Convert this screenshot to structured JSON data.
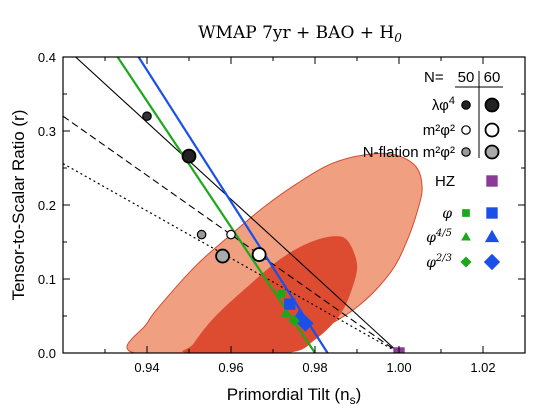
{
  "chart_data": {
    "type": "scatter",
    "title": "WMAP 7yr + BAO + H",
    "title_subscript": "0",
    "xlabel": "Primordial Tilt (n",
    "xlabel_subscript": "s",
    "xlabel_close": ")",
    "ylabel": "Tensor-to-Scalar Ratio (r)",
    "xlim": [
      0.92,
      1.03
    ],
    "ylim": [
      0.0,
      0.4
    ],
    "xticks": [
      0.94,
      0.96,
      0.98,
      1.0,
      1.02
    ],
    "xtick_labels": [
      "0.94",
      "0.96",
      "0.98",
      "1.00",
      "1.02"
    ],
    "yticks": [
      0.0,
      0.1,
      0.2,
      0.3,
      0.4
    ],
    "ytick_labels": [
      "0.0",
      "0.1",
      "0.2",
      "0.3",
      "0.4"
    ],
    "contours": {
      "outer": {
        "color": "#f0a080",
        "stroke": "#d44a30",
        "points": [
          [
            0.9695,
            0.0
          ],
          [
            0.98,
            0.028
          ],
          [
            0.99,
            0.062
          ],
          [
            0.998,
            0.109
          ],
          [
            1.002,
            0.153
          ],
          [
            1.0045,
            0.194
          ],
          [
            1.0055,
            0.224
          ],
          [
            1.004,
            0.252
          ],
          [
            0.999,
            0.268
          ],
          [
            0.992,
            0.268
          ],
          [
            0.984,
            0.256
          ],
          [
            0.976,
            0.23
          ],
          [
            0.968,
            0.198
          ],
          [
            0.96,
            0.16
          ],
          [
            0.952,
            0.12
          ],
          [
            0.944,
            0.07
          ],
          [
            0.94,
            0.04
          ],
          [
            0.937,
            0.0
          ]
        ]
      },
      "inner": {
        "color": "#dd4b30",
        "points": [
          [
            0.973,
            0.0
          ],
          [
            0.98,
            0.018
          ],
          [
            0.986,
            0.052
          ],
          [
            0.989,
            0.09
          ],
          [
            0.99,
            0.12
          ],
          [
            0.988,
            0.15
          ],
          [
            0.985,
            0.158
          ],
          [
            0.979,
            0.15
          ],
          [
            0.972,
            0.128
          ],
          [
            0.964,
            0.09
          ],
          [
            0.956,
            0.048
          ],
          [
            0.951,
            0.012
          ],
          [
            0.95,
            0.0
          ]
        ]
      }
    },
    "lines": [
      {
        "name": "",
        "style": "solid",
        "color": "#000000",
        "width": 1.1,
        "points": [
          [
            0.923,
            0.4
          ],
          [
            1.0,
            0.0
          ]
        ]
      },
      {
        "name": "",
        "style": "dashed",
        "color": "#000000",
        "width": 1.1,
        "points": [
          [
            0.92,
            0.32
          ],
          [
            1.0,
            0.0
          ]
        ]
      },
      {
        "name": "",
        "style": "dotted",
        "color": "#000000",
        "width": 1.2,
        "points": [
          [
            0.92,
            0.256
          ],
          [
            1.0,
            0.0
          ]
        ]
      },
      {
        "name": "",
        "style": "solid",
        "color": "#1ca81c",
        "width": 2.2,
        "points": [
          [
            0.933,
            0.4
          ],
          [
            0.98,
            0.0
          ]
        ]
      },
      {
        "name": "",
        "style": "solid",
        "color": "#1a50e8",
        "width": 2.2,
        "points": [
          [
            0.938,
            0.4
          ],
          [
            0.983,
            0.0
          ]
        ]
      }
    ],
    "points": [
      {
        "x": 0.94,
        "y": 0.32,
        "shape": "circle",
        "size": "small",
        "fill": "#333333",
        "stroke": "#000000"
      },
      {
        "x": 0.95,
        "y": 0.266,
        "shape": "circle",
        "size": "large",
        "fill": "#222222",
        "stroke": "#000000"
      },
      {
        "x": 0.96,
        "y": 0.16,
        "shape": "circle",
        "size": "small",
        "fill": "#ffffff",
        "stroke": "#000000"
      },
      {
        "x": 0.9667,
        "y": 0.133,
        "shape": "circle",
        "size": "large",
        "fill": "#ffffff",
        "stroke": "#000000"
      },
      {
        "x": 0.953,
        "y": 0.16,
        "shape": "circle",
        "size": "small",
        "fill": "#999999",
        "stroke": "#000000"
      },
      {
        "x": 0.958,
        "y": 0.131,
        "shape": "circle",
        "size": "large",
        "fill": "#aaaaaa",
        "stroke": "#000000"
      },
      {
        "x": 0.972,
        "y": 0.08,
        "shape": "square",
        "size": "small",
        "fill": "#1ca81c",
        "stroke": "#1ca81c"
      },
      {
        "x": 0.974,
        "y": 0.066,
        "shape": "square",
        "size": "large",
        "fill": "#1a50e8",
        "stroke": "#1a50e8"
      },
      {
        "x": 0.973,
        "y": 0.053,
        "shape": "triangle",
        "size": "small",
        "fill": "#1ca81c",
        "stroke": "#1ca81c"
      },
      {
        "x": 0.9763,
        "y": 0.05,
        "shape": "triangle",
        "size": "large",
        "fill": "#1a50e8",
        "stroke": "#1a50e8"
      },
      {
        "x": 0.975,
        "y": 0.044,
        "shape": "diamond",
        "size": "small",
        "fill": "#1ca81c",
        "stroke": "#1ca81c"
      },
      {
        "x": 0.9777,
        "y": 0.04,
        "shape": "diamond",
        "size": "large",
        "fill": "#1a50e8",
        "stroke": "#1a50e8"
      },
      {
        "x": 1.0,
        "y": 0.0,
        "shape": "square",
        "size": "large",
        "fill": "#8b3a96",
        "stroke": "#8b3a96"
      }
    ],
    "legend": {
      "header_n": "N=",
      "header_50": "50",
      "header_60": "60",
      "rows": [
        {
          "label": "λφ",
          "sup": "4",
          "style": "text",
          "small": {
            "shape": "circle",
            "fill": "#222222",
            "stroke": "#000000"
          },
          "large": {
            "shape": "circle",
            "fill": "#222222",
            "stroke": "#000000"
          }
        },
        {
          "label": "m²φ²",
          "sup": "",
          "style": "text",
          "small": {
            "shape": "circle",
            "fill": "#ffffff",
            "stroke": "#000000"
          },
          "large": {
            "shape": "circle",
            "fill": "#ffffff",
            "stroke": "#000000"
          }
        },
        {
          "label": "N-flation m²φ²",
          "sup": "",
          "style": "text",
          "small": {
            "shape": "circle",
            "fill": "#999999",
            "stroke": "#000000"
          },
          "large": {
            "shape": "circle",
            "fill": "#aaaaaa",
            "stroke": "#000000"
          }
        },
        {
          "label": "HZ",
          "sup": "",
          "style": "text",
          "small": null,
          "large": {
            "shape": "square",
            "fill": "#8b3a96",
            "stroke": "#8b3a96"
          }
        },
        {
          "label": "φ",
          "sup": "",
          "style": "math",
          "small": {
            "shape": "square",
            "fill": "#1ca81c",
            "stroke": "#1ca81c"
          },
          "large": {
            "shape": "square",
            "fill": "#1a50e8",
            "stroke": "#1a50e8"
          }
        },
        {
          "label": "φ",
          "sup": "4/5",
          "style": "math",
          "small": {
            "shape": "triangle",
            "fill": "#1ca81c",
            "stroke": "#1ca81c"
          },
          "large": {
            "shape": "triangle",
            "fill": "#1a50e8",
            "stroke": "#1a50e8"
          }
        },
        {
          "label": "φ",
          "sup": "2/3",
          "style": "math",
          "small": {
            "shape": "diamond",
            "fill": "#1ca81c",
            "stroke": "#1ca81c"
          },
          "large": {
            "shape": "diamond",
            "fill": "#1a50e8",
            "stroke": "#1a50e8"
          }
        }
      ]
    }
  }
}
